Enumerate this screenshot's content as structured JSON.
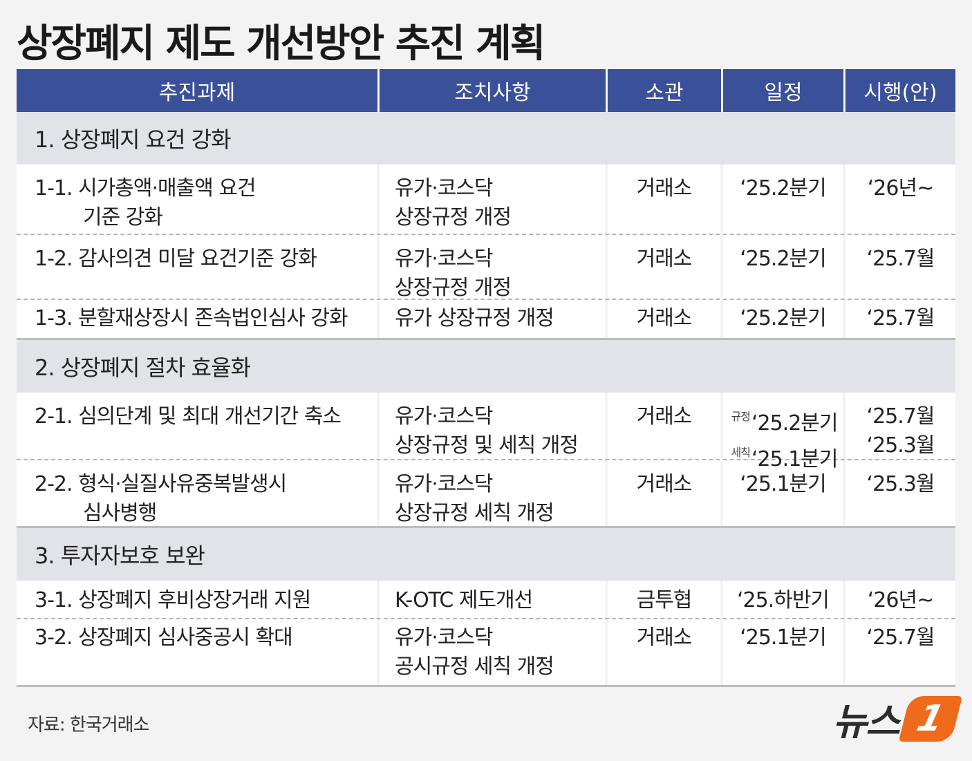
{
  "title": "상장폐지 제도 개선방안 추진 계획",
  "headers": [
    "추진과제",
    "조치사항",
    "소관",
    "일정",
    "시행(안)"
  ],
  "sections": [
    {
      "title": "1. 상장폐지 요건 강화",
      "rows": [
        {
          "task_l1": "1-1. 시가총액·매출액 요건",
          "task_l2": "기준 강화",
          "action_l1": "유가·코스닥",
          "action_l2": "상장규정 개정",
          "owner": "거래소",
          "schedule": "‘25.2분기",
          "effective": "‘26년~"
        },
        {
          "task_l1": "1-2. 감사의견 미달 요건기준 강화",
          "task_l2": "",
          "action_l1": "유가·코스닥",
          "action_l2": "상장규정 개정",
          "owner": "거래소",
          "schedule": "‘25.2분기",
          "effective": "‘25.7월"
        },
        {
          "task_l1": "1-3. 분할재상장시 존속법인심사 강화",
          "task_l2": "",
          "action_l1": "유가 상장규정 개정",
          "action_l2": "",
          "owner": "거래소",
          "schedule": "‘25.2분기",
          "effective": "‘25.7월"
        }
      ]
    },
    {
      "title": "2. 상장폐지 절차 효율화",
      "rows": [
        {
          "task_l1": "2-1. 심의단계 및 최대 개선기간 축소",
          "task_l2": "",
          "action_l1": "유가·코스닥",
          "action_l2": "상장규정 및 세칙 개정",
          "owner": "거래소",
          "schedule_tag1": "규정",
          "schedule": "‘25.2분기",
          "schedule_tag2": "세칙",
          "schedule2": "‘25.1분기",
          "effective": "‘25.7월",
          "effective2": "‘25.3월"
        },
        {
          "task_l1": "2-2. 형식·실질사유중복발생시",
          "task_l2": "심사병행",
          "action_l1": "유가·코스닥",
          "action_l2": "상장규정 세칙 개정",
          "owner": "거래소",
          "schedule": "‘25.1분기",
          "effective": "‘25.3월"
        }
      ]
    },
    {
      "title": "3. 투자자보호 보완",
      "rows": [
        {
          "task_l1": "3-1. 상장폐지 후비상장거래 지원",
          "task_l2": "",
          "action_l1": "K-OTC 제도개선",
          "action_l2": "",
          "owner": "금투협",
          "schedule": "‘25.하반기",
          "effective": "‘26년~"
        },
        {
          "task_l1": "3-2. 상장폐지 심사중공시 확대",
          "task_l2": "",
          "action_l1": "유가·코스닥",
          "action_l2": "공시규정 세칙 개정",
          "owner": "거래소",
          "schedule": "‘25.1분기",
          "effective": "‘25.7월"
        }
      ]
    }
  ],
  "source": "자료: 한국거래소",
  "logo": {
    "text": "뉴스",
    "mark": "1"
  },
  "colors": {
    "header_bg": "#3a5199",
    "section_bg": "#e2e3e8",
    "logo_accent": "#ef6a1a"
  }
}
